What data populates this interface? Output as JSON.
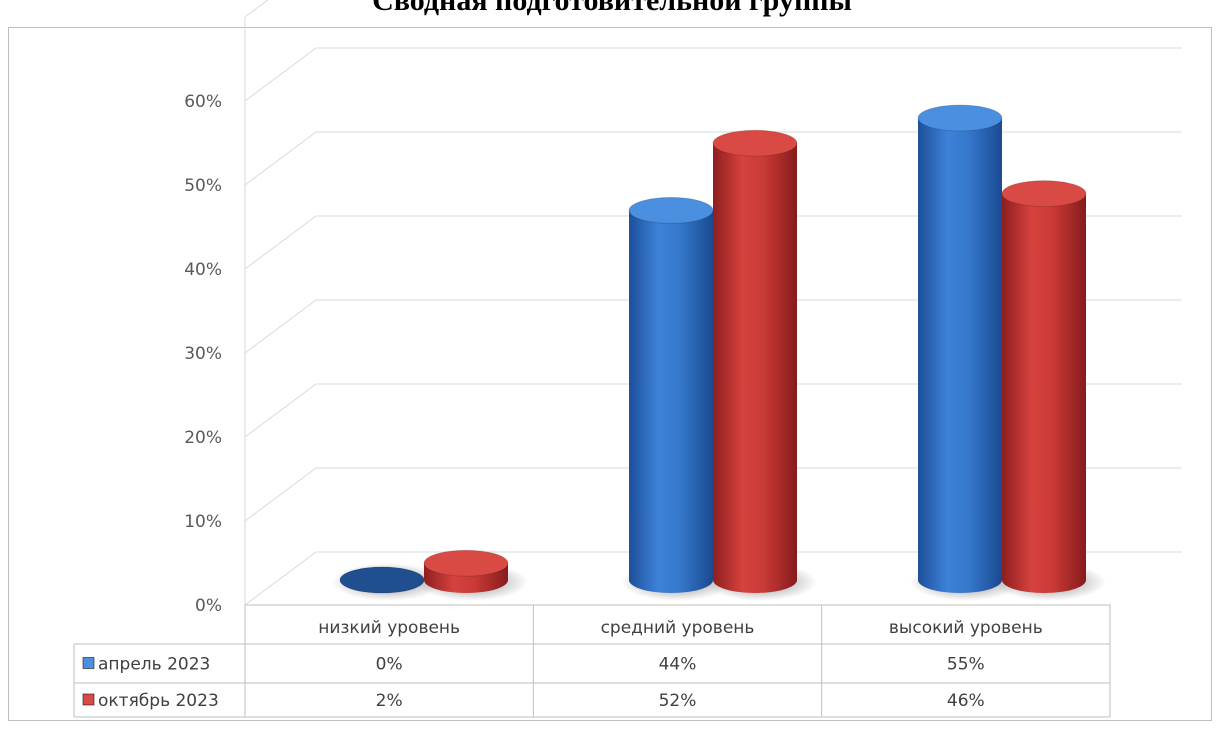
{
  "chart_data": {
    "type": "bar",
    "title": "Сводная подготовительной группы",
    "categories": [
      "низкий уровень",
      "средний уровень",
      "высокий уровень"
    ],
    "series": [
      {
        "name": "апрель 2023",
        "values": [
          0,
          44,
          55
        ],
        "labels": [
          "0%",
          "44%",
          "55%"
        ],
        "color": "#2e6fc9",
        "top_color": "#4a8fe0"
      },
      {
        "name": "октябрь 2023",
        "values": [
          2,
          52,
          46
        ],
        "labels": [
          "2%",
          "52%",
          "46%"
        ],
        "color": "#c0302f",
        "top_color": "#d94a45"
      }
    ],
    "y_ticks": [
      "0%",
      "10%",
      "20%",
      "30%",
      "40%",
      "50%",
      "60%"
    ],
    "ylim": [
      0,
      60
    ],
    "grid": true,
    "legend": "data-table",
    "style": "3d-cylinder"
  }
}
